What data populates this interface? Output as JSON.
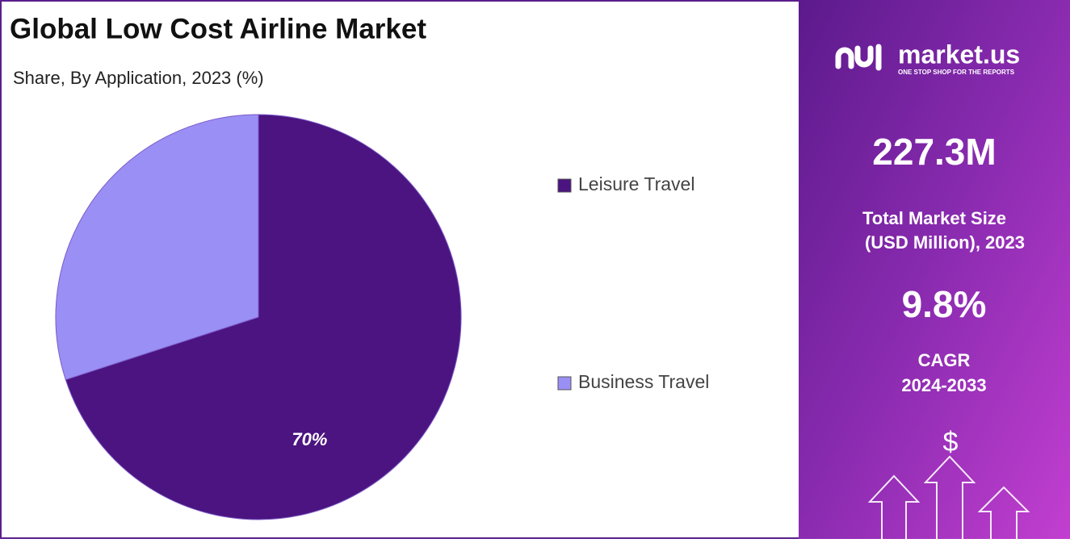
{
  "chart_data": {
    "type": "pie",
    "title": "Global Low Cost Airline Market",
    "subtitle": "Share, By Application, 2023 (%)",
    "categories": [
      "Leisure Travel",
      "Business Travel"
    ],
    "values": [
      70,
      30
    ],
    "value_labels": [
      "70%",
      null
    ],
    "colors": [
      "#4b1480",
      "#9a8ff5"
    ],
    "legend": "right"
  },
  "panel": {
    "logo": "market.us",
    "tagline": "ONE STOP SHOP FOR THE REPORTS",
    "market_size": "227.3M",
    "market_size_label": [
      "Total Market Size",
      "(USD Million), 2023"
    ],
    "cagr": "9.8%",
    "cagr_label": [
      "CAGR",
      "2024-2033"
    ],
    "icon": "$"
  }
}
